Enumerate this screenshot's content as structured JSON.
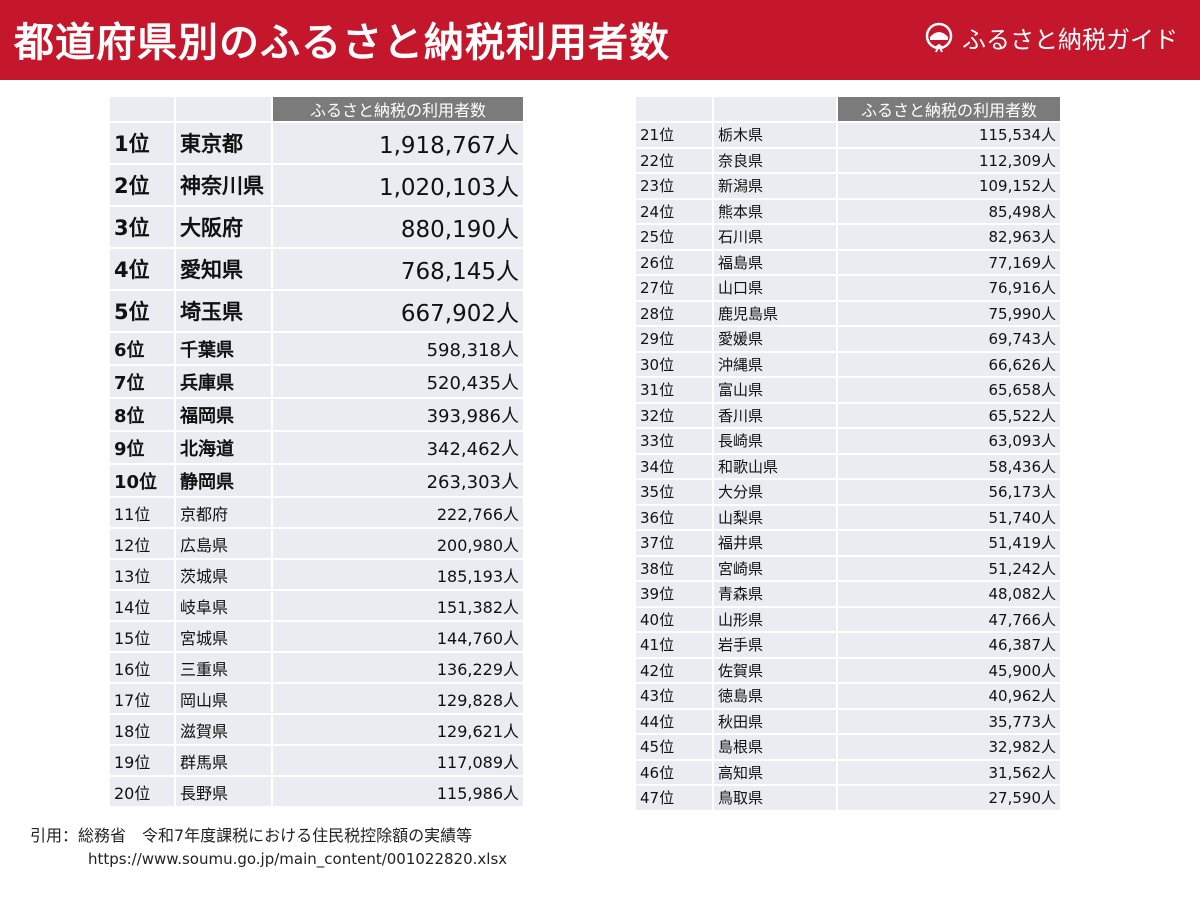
{
  "header": {
    "title": "都道府県別のふるさと納税利用者数",
    "logo_text": "ふるさと納税ガイド",
    "brand_color": "#c4172c"
  },
  "table_header": "ふるさと納税の利用者数",
  "rows": [
    [
      "1位",
      "東京都",
      "1,918,767人"
    ],
    [
      "2位",
      "神奈川県",
      "1,020,103人"
    ],
    [
      "3位",
      "大阪府",
      "880,190人"
    ],
    [
      "4位",
      "愛知県",
      "768,145人"
    ],
    [
      "5位",
      "埼玉県",
      "667,902人"
    ],
    [
      "6位",
      "千葉県",
      "598,318人"
    ],
    [
      "7位",
      "兵庫県",
      "520,435人"
    ],
    [
      "8位",
      "福岡県",
      "393,986人"
    ],
    [
      "9位",
      "北海道",
      "342,462人"
    ],
    [
      "10位",
      "静岡県",
      "263,303人"
    ],
    [
      "11位",
      "京都府",
      "222,766人"
    ],
    [
      "12位",
      "広島県",
      "200,980人"
    ],
    [
      "13位",
      "茨城県",
      "185,193人"
    ],
    [
      "14位",
      "岐阜県",
      "151,382人"
    ],
    [
      "15位",
      "宮城県",
      "144,760人"
    ],
    [
      "16位",
      "三重県",
      "136,229人"
    ],
    [
      "17位",
      "岡山県",
      "129,828人"
    ],
    [
      "18位",
      "滋賀県",
      "129,621人"
    ],
    [
      "19位",
      "群馬県",
      "117,089人"
    ],
    [
      "20位",
      "長野県",
      "115,986人"
    ],
    [
      "21位",
      "栃木県",
      "115,534人"
    ],
    [
      "22位",
      "奈良県",
      "112,309人"
    ],
    [
      "23位",
      "新潟県",
      "109,152人"
    ],
    [
      "24位",
      "熊本県",
      "85,498人"
    ],
    [
      "25位",
      "石川県",
      "82,963人"
    ],
    [
      "26位",
      "福島県",
      "77,169人"
    ],
    [
      "27位",
      "山口県",
      "76,916人"
    ],
    [
      "28位",
      "鹿児島県",
      "75,990人"
    ],
    [
      "29位",
      "愛媛県",
      "69,743人"
    ],
    [
      "30位",
      "沖縄県",
      "66,626人"
    ],
    [
      "31位",
      "富山県",
      "65,658人"
    ],
    [
      "32位",
      "香川県",
      "65,522人"
    ],
    [
      "33位",
      "長崎県",
      "63,093人"
    ],
    [
      "34位",
      "和歌山県",
      "58,436人"
    ],
    [
      "35位",
      "大分県",
      "56,173人"
    ],
    [
      "36位",
      "山梨県",
      "51,740人"
    ],
    [
      "37位",
      "福井県",
      "51,419人"
    ],
    [
      "38位",
      "宮崎県",
      "51,242人"
    ],
    [
      "39位",
      "青森県",
      "48,082人"
    ],
    [
      "40位",
      "山形県",
      "47,766人"
    ],
    [
      "41位",
      "岩手県",
      "46,387人"
    ],
    [
      "42位",
      "佐賀県",
      "45,900人"
    ],
    [
      "43位",
      "徳島県",
      "40,962人"
    ],
    [
      "44位",
      "秋田県",
      "35,773人"
    ],
    [
      "45位",
      "島根県",
      "32,982人"
    ],
    [
      "46位",
      "高知県",
      "31,562人"
    ],
    [
      "47位",
      "鳥取県",
      "27,590人"
    ]
  ],
  "citation": {
    "label": "引用：総務省　令和7年度課税における住民税控除額の実績等",
    "url": "https://www.soumu.go.jp/main_content/001022820.xlsx"
  }
}
